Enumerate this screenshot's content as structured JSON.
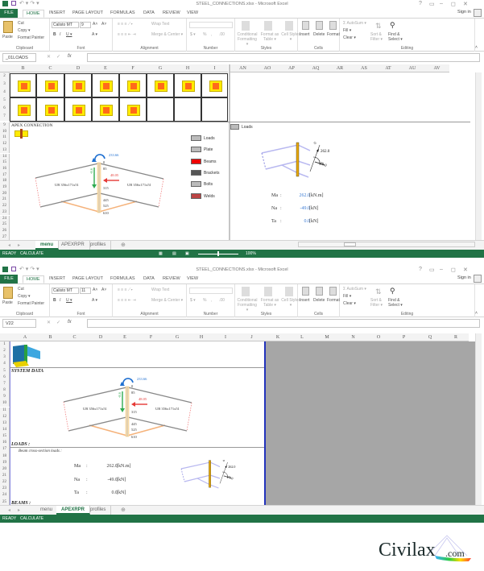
{
  "app_title": "STEEL_CONNECTIONS.xlsx - Microsoft Excel",
  "window_controls": [
    "?",
    "▭",
    "–",
    "◻",
    "✕"
  ],
  "ribbon_tabs": [
    "FILE",
    "HOME",
    "INSERT",
    "PAGE LAYOUT",
    "FORMULAS",
    "DATA",
    "REVIEW",
    "VIEW"
  ],
  "active_tab": "HOME",
  "sign_in": "Sign in",
  "ribbon": {
    "clipboard": {
      "label": "Clipboard",
      "paste": "Paste",
      "cut": "Cut",
      "copy": "Copy ▾",
      "format_painter": "Format Painter"
    },
    "font": {
      "label": "Font",
      "font_name": "Calisto MT",
      "bold": "B",
      "italic": "I",
      "underline": "U ▾",
      "grow": "A˄",
      "shrink": "A˅",
      "font_color": "A ▾"
    },
    "alignment": {
      "label": "Alignment",
      "wrap_text": "Wrap Text",
      "merge_center": "Merge & Center ▾"
    },
    "number": {
      "label": "Number",
      "currency": "$ ▾",
      "percent": "%",
      "comma": ",",
      "dec": ".00"
    },
    "styles": {
      "label": "Styles",
      "conditional": "Conditional Formatting ▾",
      "format_table": "Format as Table ▾",
      "cell_styles": "Cell Styles ▾"
    },
    "cells": {
      "label": "Cells",
      "insert": "Insert",
      "delete": "Delete",
      "format": "Format"
    },
    "editing": {
      "label": "Editing",
      "autosum": "Σ AutoSum ▾",
      "fill": "Fill ▾",
      "clear": "Clear ▾",
      "sort": "Sort & Filter ▾",
      "find": "Find & Select ▾"
    }
  },
  "fx_label": "fx",
  "sheet_tabs": [
    "menu",
    "APEXRPR",
    "profiles"
  ],
  "status": {
    "ready": "READY",
    "calculate": "CALCULATE",
    "zoom": "100%"
  },
  "window1": {
    "font_size": "9",
    "name_box": "_01LOADS",
    "active_sheet": "menu",
    "cols_left": [
      "B",
      "C",
      "D",
      "E",
      "F",
      "G",
      "H",
      "I"
    ],
    "cols_right": [
      "AN",
      "AO",
      "AP",
      "AQ",
      "AR",
      "AS",
      "AT",
      "AU",
      "AV"
    ],
    "rows_top": [
      "2",
      "3",
      "4",
      "5",
      "6",
      "7"
    ],
    "rows": [
      "9",
      "10",
      "11",
      "12",
      "13",
      "14",
      "15",
      "16",
      "17",
      "18",
      "19",
      "20",
      "21",
      "22",
      "23",
      "24",
      "25",
      "26",
      "27"
    ],
    "section_title": "APEX CONNECTION",
    "legend": [
      "Loads",
      "Plate",
      "Beams",
      "Brackets",
      "Bolts",
      "Welds"
    ],
    "right_title": "Loads",
    "loads": [
      {
        "name": "Ma",
        "sep": ":",
        "value": "262.0",
        "unit": "[kN.m]"
      },
      {
        "name": "Na",
        "sep": ":",
        "value": "-49.0",
        "unit": "[kN]"
      },
      {
        "name": "Ta",
        "sep": ":",
        "value": "0.0",
        "unit": "[kN]"
      }
    ]
  },
  "window2": {
    "font_size": "11",
    "name_box": "V22",
    "active_sheet": "APEXRPR",
    "cols": [
      "A",
      "B",
      "C",
      "D",
      "E",
      "F",
      "G",
      "H",
      "I",
      "J",
      "K",
      "L",
      "M",
      "N",
      "O",
      "P",
      "Q",
      "R"
    ],
    "rows": [
      "1",
      "2",
      "3",
      "4",
      "5",
      "6",
      "7",
      "8",
      "9",
      "10",
      "11",
      "12",
      "13",
      "14",
      "15",
      "16",
      "17",
      "18",
      "19",
      "20",
      "21",
      "22",
      "23",
      "24",
      "25"
    ],
    "system_data": "SYSTEM DATA",
    "loads_title": "LOADS :",
    "beam_loads": "Beam cross-section loads :",
    "beams_title": "BEAMS :",
    "loads": [
      {
        "name": "Ma",
        "sep": ":",
        "value": "262.0",
        "unit": "[kN.m]"
      },
      {
        "name": "Na",
        "sep": ":",
        "value": "-49.0",
        "unit": "[kN]"
      },
      {
        "name": "Ta",
        "sep": ":",
        "value": "0.0",
        "unit": "[kN]"
      }
    ]
  },
  "diagram": {
    "moment": "233.66",
    "shear": "-8.6",
    "axial": "48.05",
    "beam_left": "UB 356x171x51",
    "beam_right": "UB 356x171x51",
    "levels": [
      "0",
      "85",
      "315",
      "445",
      "525",
      "610"
    ]
  },
  "mini_diagram": {
    "moment": "262.0",
    "axial": "-49.0",
    "shear": "0"
  },
  "watermark": "Civilax.com",
  "colors": {
    "excel_green": "#217346",
    "value_blue": "#3a7bd5",
    "load_red": "#e53935",
    "shear_green": "#2eaa4f",
    "haunch_orange": "#f5b27a"
  }
}
